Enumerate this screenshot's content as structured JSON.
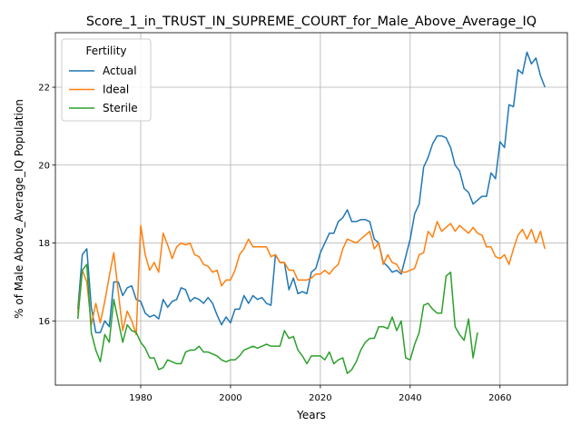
{
  "chart_data": {
    "type": "line",
    "title": "Score_1_in_TRUST_IN_SUPREME_COURT_for_Male_Above_Average_IQ",
    "xlabel": "Years",
    "ylabel": "% of Male Above_Average_IQ Population",
    "xlim": [
      1961,
      2075
    ],
    "ylim": [
      14.35,
      23.4
    ],
    "xticks": [
      1980,
      2000,
      2020,
      2040,
      2060
    ],
    "yticks": [
      16,
      18,
      20,
      22
    ],
    "grid": true,
    "legend": {
      "title": "Fertility",
      "position": "top-left"
    },
    "series": [
      {
        "name": "Actual",
        "color": "#1f77b4",
        "x": [
          1966,
          1967,
          1968,
          1969,
          1970,
          1971,
          1972,
          1973,
          1974,
          1975,
          1976,
          1977,
          1978,
          1979,
          1980,
          1981,
          1982,
          1983,
          1984,
          1985,
          1986,
          1987,
          1988,
          1989,
          1990,
          1991,
          1992,
          1993,
          1994,
          1995,
          1996,
          1997,
          1998,
          1999,
          2000,
          2001,
          2002,
          2003,
          2004,
          2005,
          2006,
          2007,
          2008,
          2009,
          2010,
          2011,
          2012,
          2013,
          2014,
          2015,
          2016,
          2017,
          2018,
          2019,
          2020,
          2021,
          2022,
          2023,
          2024,
          2025,
          2026,
          2027,
          2028,
          2029,
          2030,
          2031,
          2032,
          2033,
          2034,
          2035,
          2036,
          2037,
          2038,
          2039,
          2040,
          2041,
          2042,
          2043,
          2044,
          2045,
          2046,
          2047,
          2048,
          2049,
          2050,
          2051,
          2052,
          2053,
          2054,
          2055,
          2056,
          2057,
          2058,
          2059,
          2060,
          2061,
          2062,
          2063,
          2064,
          2065,
          2066,
          2067,
          2068,
          2069,
          2070
        ],
        "values": [
          16.3,
          17.7,
          17.85,
          16.35,
          15.7,
          15.7,
          16.0,
          15.85,
          17.0,
          17.0,
          16.65,
          16.85,
          16.9,
          16.55,
          16.5,
          16.2,
          16.1,
          16.15,
          16.05,
          16.55,
          16.35,
          16.5,
          16.55,
          16.85,
          16.8,
          16.5,
          16.6,
          16.55,
          16.45,
          16.6,
          16.45,
          16.15,
          15.9,
          16.1,
          15.95,
          16.3,
          16.3,
          16.65,
          16.45,
          16.65,
          16.55,
          16.6,
          16.45,
          16.4,
          17.7,
          17.5,
          17.5,
          16.8,
          17.1,
          16.7,
          16.75,
          16.7,
          17.25,
          17.35,
          17.75,
          18.0,
          18.25,
          18.25,
          18.55,
          18.65,
          18.85,
          18.55,
          18.55,
          18.6,
          18.6,
          18.55,
          18.1,
          18.0,
          17.5,
          17.4,
          17.25,
          17.3,
          17.2,
          17.65,
          18.1,
          18.75,
          19.0,
          19.95,
          20.2,
          20.55,
          20.75,
          20.75,
          20.7,
          20.45,
          20.0,
          19.85,
          19.4,
          19.3,
          19.0,
          19.1,
          19.2,
          19.2,
          19.8,
          19.65,
          20.6,
          20.45,
          21.55,
          21.5,
          22.45,
          22.35,
          22.9,
          22.6,
          22.75,
          22.3,
          22.0
        ]
      },
      {
        "name": "Ideal",
        "color": "#ff7f0e",
        "x": [
          1966,
          1967,
          1968,
          1969,
          1970,
          1971,
          1972,
          1973,
          1974,
          1975,
          1976,
          1977,
          1978,
          1979,
          1980,
          1981,
          1982,
          1983,
          1984,
          1985,
          1986,
          1987,
          1988,
          1989,
          1990,
          1991,
          1992,
          1993,
          1994,
          1995,
          1996,
          1997,
          1998,
          1999,
          2000,
          2001,
          2002,
          2003,
          2004,
          2005,
          2006,
          2007,
          2008,
          2009,
          2010,
          2011,
          2012,
          2013,
          2014,
          2015,
          2016,
          2017,
          2018,
          2019,
          2020,
          2021,
          2022,
          2023,
          2024,
          2025,
          2026,
          2027,
          2028,
          2029,
          2030,
          2031,
          2032,
          2033,
          2034,
          2035,
          2036,
          2037,
          2038,
          2039,
          2040,
          2041,
          2042,
          2043,
          2044,
          2045,
          2046,
          2047,
          2048,
          2049,
          2050,
          2051,
          2052,
          2053,
          2054,
          2055,
          2056,
          2057,
          2058,
          2059,
          2060,
          2061,
          2062,
          2063,
          2064,
          2065,
          2066,
          2067,
          2068,
          2069,
          2070
        ],
        "values": [
          16.2,
          17.3,
          17.0,
          15.9,
          16.45,
          15.95,
          16.5,
          17.15,
          17.75,
          16.75,
          15.75,
          16.25,
          16.0,
          15.65,
          18.45,
          17.7,
          17.3,
          17.5,
          17.25,
          18.25,
          17.95,
          17.6,
          17.9,
          18.0,
          17.95,
          18.0,
          17.7,
          17.65,
          17.45,
          17.4,
          17.25,
          17.3,
          16.9,
          17.05,
          17.05,
          17.3,
          17.7,
          17.85,
          18.1,
          17.9,
          17.9,
          17.9,
          17.9,
          17.65,
          17.7,
          17.5,
          17.5,
          17.3,
          17.3,
          17.05,
          17.05,
          17.05,
          17.1,
          17.2,
          17.2,
          17.3,
          17.2,
          17.35,
          17.45,
          17.85,
          18.1,
          18.05,
          18.0,
          18.1,
          18.2,
          18.3,
          17.85,
          18.0,
          17.45,
          17.7,
          17.5,
          17.45,
          17.25,
          17.25,
          17.3,
          17.35,
          17.7,
          17.75,
          18.3,
          18.15,
          18.55,
          18.3,
          18.4,
          18.5,
          18.3,
          18.45,
          18.35,
          18.25,
          18.4,
          18.25,
          18.2,
          17.9,
          17.9,
          17.65,
          17.6,
          17.7,
          17.45,
          17.85,
          18.2,
          18.35,
          18.1,
          18.35,
          18.0,
          18.3,
          17.85
        ]
      },
      {
        "name": "Sterile",
        "color": "#2ca02c",
        "x": [
          1966,
          1967,
          1968,
          1969,
          1970,
          1971,
          1972,
          1973,
          1974,
          1975,
          1976,
          1977,
          1978,
          1979,
          1980,
          1981,
          1982,
          1983,
          1984,
          1985,
          1986,
          1987,
          1988,
          1989,
          1990,
          1991,
          1992,
          1993,
          1994,
          1995,
          1996,
          1997,
          1998,
          1999,
          2000,
          2001,
          2002,
          2003,
          2004,
          2005,
          2006,
          2007,
          2008,
          2009,
          2010,
          2011,
          2012,
          2013,
          2014,
          2015,
          2016,
          2017,
          2018,
          2019,
          2020,
          2021,
          2022,
          2023,
          2024,
          2025,
          2026,
          2027,
          2028,
          2029,
          2030,
          2031,
          2032,
          2033,
          2034,
          2035,
          2036,
          2037,
          2038,
          2039,
          2040,
          2041,
          2042,
          2043,
          2044,
          2045,
          2046,
          2047,
          2048,
          2049,
          2050,
          2051,
          2052,
          2053,
          2054,
          2055
        ],
        "values": [
          16.05,
          17.3,
          17.45,
          15.7,
          15.25,
          14.95,
          15.65,
          15.45,
          16.55,
          16.0,
          15.45,
          15.9,
          15.75,
          15.7,
          15.45,
          15.3,
          15.05,
          15.05,
          14.75,
          14.8,
          15.0,
          14.95,
          14.9,
          14.9,
          15.2,
          15.25,
          15.25,
          15.35,
          15.2,
          15.2,
          15.15,
          15.1,
          15.0,
          14.95,
          15.0,
          15.0,
          15.1,
          15.25,
          15.3,
          15.35,
          15.3,
          15.35,
          15.4,
          15.35,
          15.35,
          15.35,
          15.75,
          15.55,
          15.6,
          15.25,
          15.1,
          14.9,
          15.1,
          15.1,
          15.1,
          15.0,
          15.2,
          14.9,
          15.0,
          15.05,
          14.65,
          14.75,
          14.95,
          15.25,
          15.45,
          15.55,
          15.55,
          15.85,
          15.85,
          15.8,
          16.1,
          15.75,
          16.0,
          15.05,
          15.0,
          15.4,
          15.7,
          16.4,
          16.45,
          16.3,
          16.2,
          16.2,
          17.15,
          17.25,
          15.85,
          15.65,
          15.5,
          16.05,
          15.05,
          15.7
        ]
      }
    ]
  }
}
